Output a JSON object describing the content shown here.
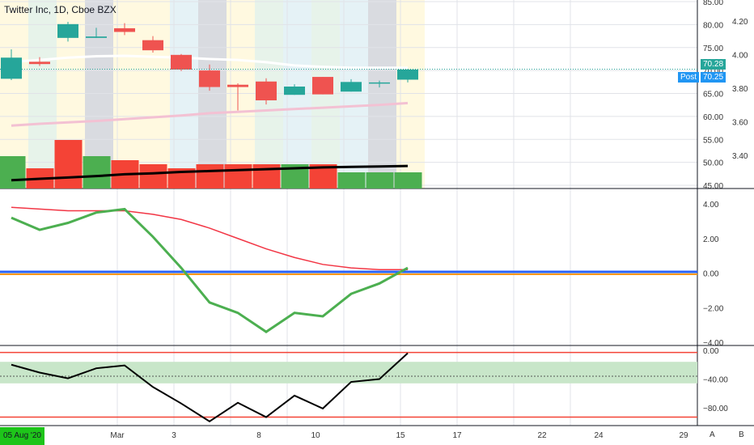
{
  "header": {
    "title": "Twitter Inc, 1D, Cboe BZX"
  },
  "price_tags": {
    "last": "70.28",
    "post_label": "Post",
    "post": "70.25"
  },
  "price_axis": {
    "left_labels": [
      "85.00",
      "80.00",
      "75.00",
      "70.00",
      "65.00",
      "60.00",
      "55.00",
      "50.00",
      "45.00"
    ],
    "right_labels": [
      "4.20",
      "4.00",
      "3.80",
      "3.60",
      "3.40"
    ]
  },
  "macd_axis": {
    "labels": [
      "4.00",
      "2.00",
      "0.00",
      "−2.00",
      "−4.00"
    ]
  },
  "wr_axis": {
    "labels": [
      "0.00",
      "−40.00",
      "−80.00"
    ]
  },
  "time_axis": {
    "date_badge": "05 Aug '20",
    "labels": [
      "Mar",
      "3",
      "8",
      "10",
      "15",
      "17",
      "22",
      "24",
      "29"
    ]
  },
  "corner_buttons": {
    "a": "A",
    "b": "B"
  },
  "colors": {
    "up": "#26a69a",
    "down": "#ef5350",
    "vol_up": "#4caf50",
    "vol_down": "#f44336",
    "grid": "#e1e3e8",
    "post_blue": "#2196f3",
    "date_green": "#1ec51a"
  },
  "chart_data": {
    "type": "candlestick",
    "candles": [
      {
        "o": 68.2,
        "h": 74.6,
        "l": 67.9,
        "c": 72.8
      },
      {
        "o": 71.9,
        "h": 72.9,
        "l": 71.0,
        "c": 71.4
      },
      {
        "o": 77.1,
        "h": 80.6,
        "l": 76.3,
        "c": 80.1
      },
      {
        "o": 77.1,
        "h": 79.3,
        "l": 77.1,
        "c": 77.4
      },
      {
        "o": 79.2,
        "h": 80.3,
        "l": 77.7,
        "c": 78.4
      },
      {
        "o": 76.6,
        "h": 77.5,
        "l": 73.9,
        "c": 74.4
      },
      {
        "o": 73.4,
        "h": 73.6,
        "l": 69.9,
        "c": 70.2
      },
      {
        "o": 70.0,
        "h": 71.3,
        "l": 65.6,
        "c": 66.4
      },
      {
        "o": 66.9,
        "h": 67.2,
        "l": 61.3,
        "c": 66.4
      },
      {
        "o": 67.6,
        "h": 68.3,
        "l": 62.6,
        "c": 63.5
      },
      {
        "o": 64.7,
        "h": 67.0,
        "l": 64.7,
        "c": 66.5
      },
      {
        "o": 68.6,
        "h": 68.6,
        "l": 64.8,
        "c": 64.8
      },
      {
        "o": 65.4,
        "h": 68.1,
        "l": 65.4,
        "c": 67.5
      },
      {
        "o": 67.2,
        "h": 67.8,
        "l": 66.3,
        "c": 67.4
      },
      {
        "o": 68.0,
        "h": 70.3,
        "l": 67.4,
        "c": 70.2
      }
    ],
    "volume": [
      {
        "v": 48,
        "up": true
      },
      {
        "v": 45,
        "up": false
      },
      {
        "v": 52,
        "up": false
      },
      {
        "v": 48,
        "up": true
      },
      {
        "v": 47,
        "up": false
      },
      {
        "v": 46,
        "up": false
      },
      {
        "v": 45,
        "up": false
      },
      {
        "v": 46,
        "up": false
      },
      {
        "v": 46,
        "up": false
      },
      {
        "v": 46,
        "up": false
      },
      {
        "v": 46,
        "up": true
      },
      {
        "v": 46,
        "up": false
      },
      {
        "v": 44,
        "up": true
      },
      {
        "v": 44,
        "up": true
      },
      {
        "v": 44,
        "up": true
      }
    ],
    "ma_white": [
      71.9,
      72.3,
      72.8,
      73.1,
      73.2,
      73.0,
      72.8,
      72.5,
      72.3,
      71.8,
      71.1,
      70.8,
      70.6,
      70.6,
      70.6
    ],
    "ma_pink": [
      58.0,
      58.4,
      58.7,
      59.0,
      59.4,
      59.8,
      60.2,
      60.7,
      61.0,
      61.3,
      61.6,
      61.9,
      62.2,
      62.5,
      62.9
    ],
    "ma_black": [
      46.1,
      46.4,
      46.7,
      47.0,
      47.4,
      47.6,
      47.9,
      48.1,
      48.3,
      48.5,
      48.7,
      48.9,
      49.0,
      49.1,
      49.2
    ],
    "macd": [
      3.2,
      2.5,
      2.9,
      3.5,
      3.7,
      2.1,
      0.3,
      -1.7,
      -2.3,
      -3.4,
      -2.3,
      -2.5,
      -1.2,
      -0.6,
      0.3
    ],
    "signal": [
      3.8,
      3.7,
      3.6,
      3.6,
      3.6,
      3.4,
      3.1,
      2.6,
      2.0,
      1.4,
      0.9,
      0.5,
      0.3,
      0.2,
      0.2
    ],
    "wr": [
      -20,
      -31,
      -39,
      -25,
      -21,
      -51,
      -74,
      -99,
      -73,
      -93,
      -63,
      -81,
      -44,
      -40,
      -4
    ],
    "wr_levels": {
      "top": -3,
      "band_high": -16,
      "mid": -36,
      "band_low": -46,
      "bottom": -93
    }
  }
}
